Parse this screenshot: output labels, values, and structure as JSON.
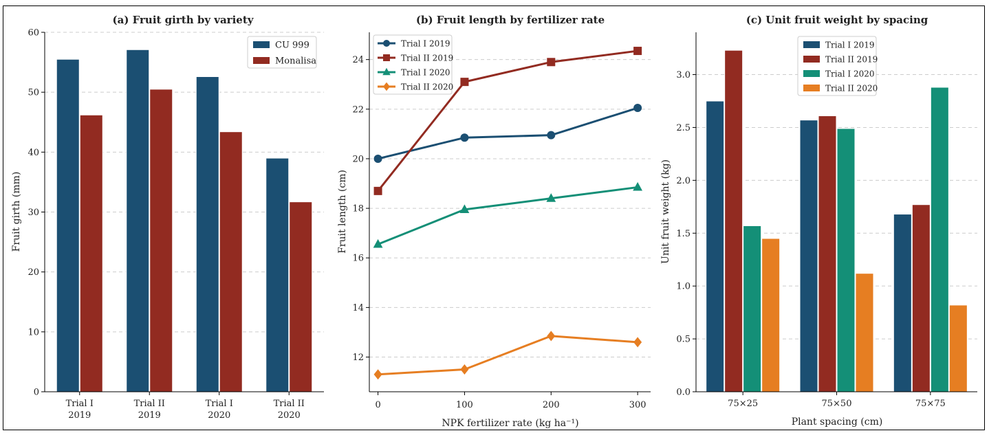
{
  "colors": {
    "navy": "#1b4f72",
    "red": "#922b21",
    "green": "#148f77",
    "orange": "#e67e22",
    "grid": "#cccccc"
  },
  "chart_data": [
    {
      "type": "bar",
      "title": "(a) Fruit girth by variety",
      "xlabel": "",
      "ylabel": "Fruit girth (mm)",
      "ylim": [
        0,
        60
      ],
      "yticks": [
        0,
        10,
        20,
        30,
        40,
        50,
        60
      ],
      "categories": [
        [
          "Trial I",
          "2019"
        ],
        [
          "Trial II",
          "2019"
        ],
        [
          "Trial I",
          "2020"
        ],
        [
          "Trial II",
          "2020"
        ]
      ],
      "series": [
        {
          "name": "CU 999",
          "color": "#1b4f72",
          "values": [
            55.5,
            57.1,
            52.6,
            39.0
          ]
        },
        {
          "name": "Monalisa",
          "color": "#922b21",
          "values": [
            46.2,
            50.5,
            43.4,
            31.7
          ]
        }
      ],
      "legend": "top-right",
      "grid": "y-dashed"
    },
    {
      "type": "line",
      "title": "(b) Fruit length by fertilizer rate",
      "xlabel": "NPK fertilizer rate (kg ha⁻¹)",
      "ylabel": "Fruit length (cm)",
      "x": [
        0,
        100,
        200,
        300
      ],
      "xlim": [
        -10,
        315
      ],
      "ylim": [
        10.6,
        25.1
      ],
      "yticks": [
        12,
        14,
        16,
        18,
        20,
        22,
        24
      ],
      "series": [
        {
          "name": "Trial I 2019",
          "color": "#1b4f72",
          "marker": "circle",
          "values": [
            20.0,
            20.85,
            20.95,
            22.05
          ]
        },
        {
          "name": "Trial II 2019",
          "color": "#922b21",
          "marker": "square",
          "values": [
            18.7,
            23.1,
            23.9,
            24.35
          ]
        },
        {
          "name": "Trial I 2020",
          "color": "#148f77",
          "marker": "triangle",
          "values": [
            16.55,
            17.95,
            18.4,
            18.85
          ]
        },
        {
          "name": "Trial II 2020",
          "color": "#e67e22",
          "marker": "diamond",
          "values": [
            11.3,
            11.5,
            12.85,
            12.6
          ]
        }
      ],
      "legend": "top-left",
      "grid": "y-dashed"
    },
    {
      "type": "bar",
      "title": "(c) Unit fruit weight by spacing",
      "xlabel": "Plant spacing (cm)",
      "ylabel": "Unit fruit weight (kg)",
      "ylim": [
        0,
        3.4
      ],
      "yticks": [
        "0.0",
        "0.5",
        "1.0",
        "1.5",
        "2.0",
        "2.5",
        "3.0"
      ],
      "categories": [
        [
          "75×25"
        ],
        [
          "75×50"
        ],
        [
          "75×75"
        ]
      ],
      "series": [
        {
          "name": "Trial I 2019",
          "color": "#1b4f72",
          "values": [
            2.75,
            2.57,
            1.68
          ]
        },
        {
          "name": "Trial II 2019",
          "color": "#922b21",
          "values": [
            3.23,
            2.61,
            1.77
          ]
        },
        {
          "name": "Trial I 2020",
          "color": "#148f77",
          "values": [
            1.57,
            2.49,
            2.88
          ]
        },
        {
          "name": "Trial II 2020",
          "color": "#e67e22",
          "values": [
            1.45,
            1.12,
            0.82
          ]
        }
      ],
      "legend": "top-center",
      "grid": "y-dashed"
    }
  ]
}
